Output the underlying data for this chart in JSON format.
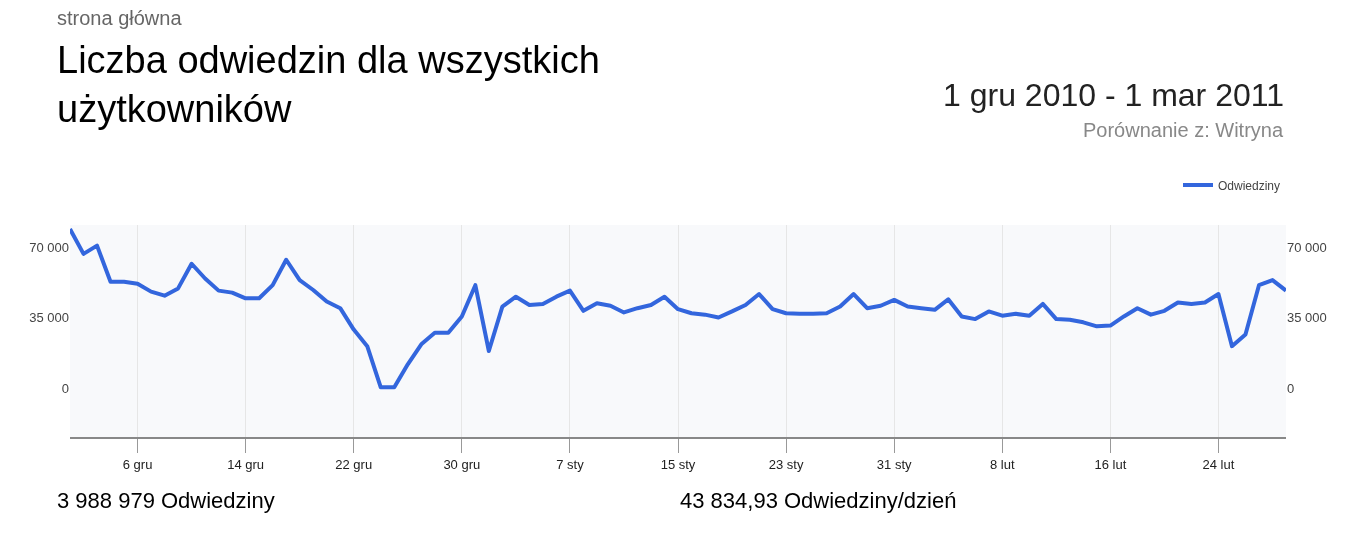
{
  "chart_data": {
    "type": "line",
    "subtitle": "strona główna",
    "title": "Liczba odwiedzin dla wszystkich użytkowników",
    "annotations": [
      "1 gru 2010 - 1 mar 2011",
      "Porównanie z: Witryna",
      "3 988 979 Odwiedziny",
      "43 834,93 Odwiedziny/dzień"
    ],
    "x": [
      "2010-12-01",
      "2010-12-02",
      "2010-12-03",
      "2010-12-04",
      "2010-12-05",
      "2010-12-06",
      "2010-12-07",
      "2010-12-08",
      "2010-12-09",
      "2010-12-10",
      "2010-12-11",
      "2010-12-12",
      "2010-12-13",
      "2010-12-14",
      "2010-12-15",
      "2010-12-16",
      "2010-12-17",
      "2010-12-18",
      "2010-12-19",
      "2010-12-20",
      "2010-12-21",
      "2010-12-22",
      "2010-12-23",
      "2010-12-24",
      "2010-12-25",
      "2010-12-26",
      "2010-12-27",
      "2010-12-28",
      "2010-12-29",
      "2010-12-30",
      "2010-12-31",
      "2011-01-01",
      "2011-01-02",
      "2011-01-03",
      "2011-01-04",
      "2011-01-05",
      "2011-01-06",
      "2011-01-07",
      "2011-01-08",
      "2011-01-09",
      "2011-01-10",
      "2011-01-11",
      "2011-01-12",
      "2011-01-13",
      "2011-01-14",
      "2011-01-15",
      "2011-01-16",
      "2011-01-17",
      "2011-01-18",
      "2011-01-19",
      "2011-01-20",
      "2011-01-21",
      "2011-01-22",
      "2011-01-23",
      "2011-01-24",
      "2011-01-25",
      "2011-01-26",
      "2011-01-27",
      "2011-01-28",
      "2011-01-29",
      "2011-01-30",
      "2011-01-31",
      "2011-02-01",
      "2011-02-02",
      "2011-02-03",
      "2011-02-04",
      "2011-02-05",
      "2011-02-06",
      "2011-02-07",
      "2011-02-08",
      "2011-02-09",
      "2011-02-10",
      "2011-02-11",
      "2011-02-12",
      "2011-02-13",
      "2011-02-14",
      "2011-02-15",
      "2011-02-16",
      "2011-02-17",
      "2011-02-18",
      "2011-02-19",
      "2011-02-20",
      "2011-02-21",
      "2011-02-22",
      "2011-02-23",
      "2011-02-24",
      "2011-02-25",
      "2011-02-26",
      "2011-02-27",
      "2011-02-28",
      "2011-03-01"
    ],
    "series": [
      {
        "name": "Odwiedziny",
        "color": "#3366dd",
        "values": [
          79000,
          66700,
          70800,
          52900,
          52900,
          51900,
          48000,
          46000,
          49600,
          61800,
          54500,
          48500,
          47500,
          44700,
          44700,
          51200,
          63800,
          53700,
          48800,
          43100,
          39800,
          29200,
          21000,
          600,
          600,
          12000,
          21900,
          27600,
          27600,
          35700,
          51200,
          18600,
          40600,
          45500,
          41400,
          41900,
          45500,
          48500,
          38500,
          42200,
          41000,
          37700,
          39800,
          41400,
          45500,
          39300,
          37300,
          36600,
          35200,
          38200,
          41400,
          46800,
          39300,
          37300,
          37000,
          37000,
          37300,
          40600,
          46800,
          39800,
          41000,
          43900,
          40600,
          39800,
          39000,
          44200,
          35700,
          34400,
          38200,
          36100,
          37000,
          36100,
          41900,
          34400,
          34100,
          32800,
          30800,
          31200,
          35700,
          39800,
          36600,
          38500,
          42600,
          41900,
          42600,
          46800,
          21000,
          26800,
          51200,
          53700,
          48500
        ]
      }
    ],
    "xlim": [
      "2010-12-01",
      "2011-03-01"
    ],
    "xticks": [
      {
        "value": "2010-12-06",
        "label": "6 gru"
      },
      {
        "value": "2010-12-14",
        "label": "14 gru"
      },
      {
        "value": "2010-12-22",
        "label": "22 gru"
      },
      {
        "value": "2010-12-30",
        "label": "30 gru"
      },
      {
        "value": "2011-01-07",
        "label": "7 sty"
      },
      {
        "value": "2011-01-15",
        "label": "15 sty"
      },
      {
        "value": "2011-01-23",
        "label": "23 sty"
      },
      {
        "value": "2011-01-31",
        "label": "31 sty"
      },
      {
        "value": "2011-02-08",
        "label": "8 lut"
      },
      {
        "value": "2011-02-16",
        "label": "16 lut"
      },
      {
        "value": "2011-02-24",
        "label": "24 lut"
      }
    ],
    "ylim": [
      -24000,
      81000
    ],
    "yticks": [
      0,
      {
        "value": 35000,
        "label": "35 000"
      },
      {
        "value": 70000,
        "label": "70 000"
      }
    ],
    "y2lim": [
      -24000,
      81000
    ],
    "y2ticks": [
      0,
      {
        "value": 35000,
        "label": "35 000"
      },
      {
        "value": 70000,
        "label": "70 000"
      }
    ],
    "grid": "x",
    "legend": "top right",
    "marker": "none",
    "line_style": "solid"
  }
}
